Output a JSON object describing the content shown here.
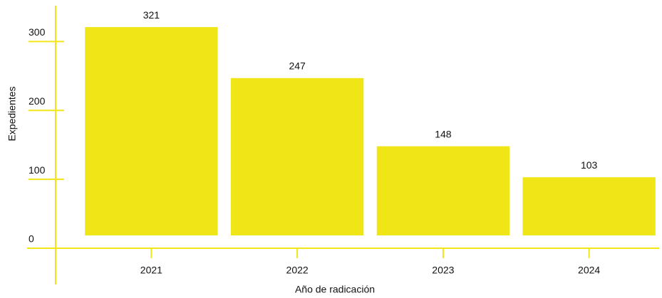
{
  "chart_data": {
    "type": "bar",
    "x_label": "Año de radicación",
    "y_label": "Expedientes",
    "categories": [
      "2021",
      "2022",
      "2023",
      "2024"
    ],
    "values": [
      321,
      247,
      148,
      103
    ],
    "color": "#f0e516",
    "ylim": [
      0,
      350
    ],
    "yticks": [
      0,
      100,
      200,
      300
    ]
  }
}
